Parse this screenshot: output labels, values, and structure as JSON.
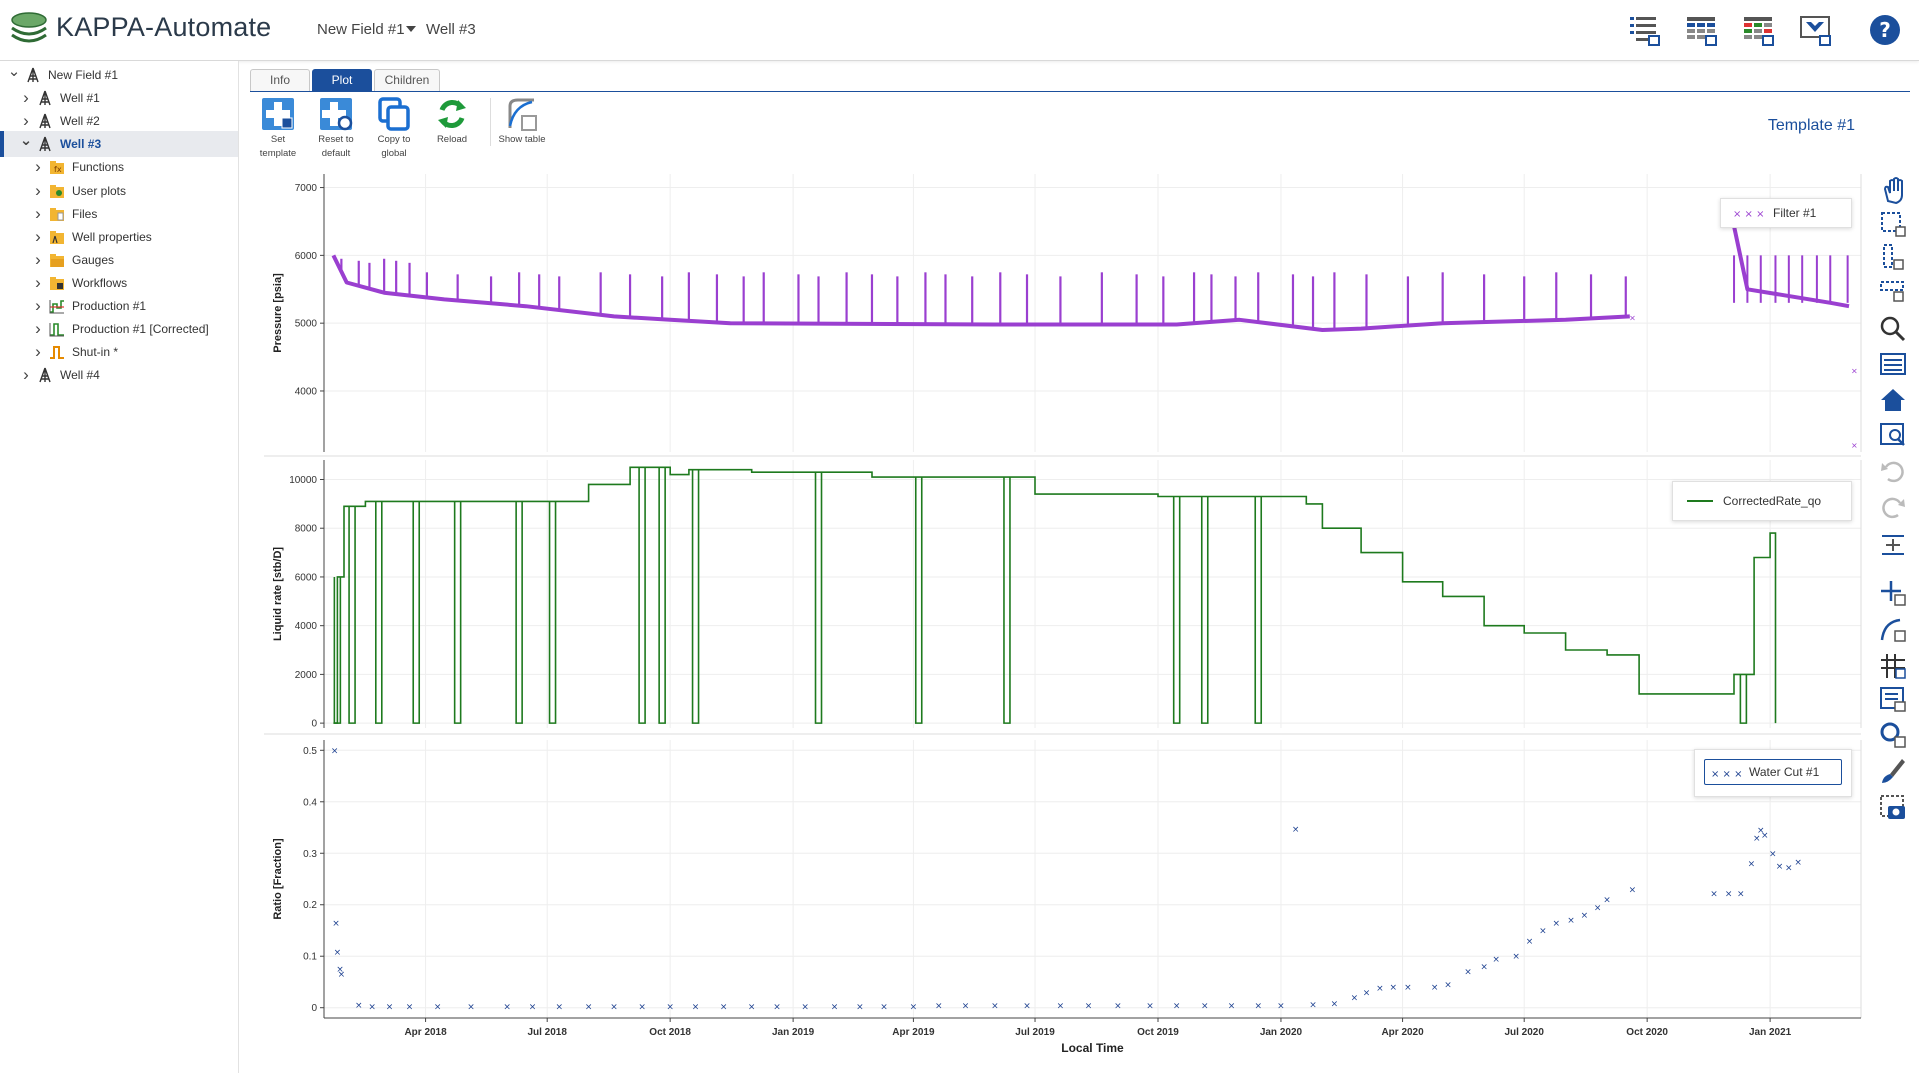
{
  "app": {
    "title": "KAPPA-Automate",
    "breadcrumb_field": "New Field #1",
    "breadcrumb_well": "Well #3"
  },
  "header_icons": [
    "list-view-icon",
    "grid-view-icon",
    "table-view-icon",
    "dashboard-icon",
    "help-icon"
  ],
  "tree": [
    {
      "label": "New Field #1",
      "level": 0,
      "expanded": true,
      "icon": "rig-icon"
    },
    {
      "label": "Well #1",
      "level": 1,
      "expanded": false,
      "icon": "rig-icon"
    },
    {
      "label": "Well #2",
      "level": 1,
      "expanded": false,
      "icon": "rig-icon"
    },
    {
      "label": "Well #3",
      "level": 1,
      "expanded": true,
      "icon": "rig-icon",
      "selected": true
    },
    {
      "label": "Functions",
      "level": 2,
      "expanded": false,
      "icon": "functions-folder-icon"
    },
    {
      "label": "User plots",
      "level": 2,
      "expanded": false,
      "icon": "user-plots-folder-icon"
    },
    {
      "label": "Files",
      "level": 2,
      "expanded": false,
      "icon": "files-folder-icon"
    },
    {
      "label": "Well properties",
      "level": 2,
      "expanded": false,
      "icon": "well-properties-folder-icon"
    },
    {
      "label": "Gauges",
      "level": 2,
      "expanded": false,
      "icon": "gauges-folder-icon"
    },
    {
      "label": "Workflows",
      "level": 2,
      "expanded": false,
      "icon": "workflows-folder-icon"
    },
    {
      "label": "Production #1",
      "level": 2,
      "expanded": false,
      "icon": "production-icon"
    },
    {
      "label": "Production #1 [Corrected]",
      "level": 2,
      "expanded": false,
      "icon": "production-corrected-icon"
    },
    {
      "label": "Shut-in *",
      "level": 2,
      "expanded": false,
      "icon": "shut-in-icon"
    },
    {
      "label": "Well #4",
      "level": 1,
      "expanded": false,
      "icon": "rig-icon"
    }
  ],
  "tabs": [
    {
      "label": "Info",
      "active": false
    },
    {
      "label": "Plot",
      "active": true
    },
    {
      "label": "Children",
      "active": false
    }
  ],
  "toolbar": [
    {
      "name": "set-template-button",
      "line1": "Set",
      "line2": "template",
      "icon": "set-template-icon"
    },
    {
      "name": "reset-to-default-button",
      "line1": "Reset to",
      "line2": "default",
      "icon": "reset-default-icon"
    },
    {
      "name": "copy-to-global-button",
      "line1": "Copy to",
      "line2": "global",
      "icon": "copy-icon"
    },
    {
      "name": "reload-button",
      "line1": "Reload",
      "line2": "",
      "icon": "reload-icon"
    },
    {
      "name": "show-table-button",
      "line1": "Show table",
      "line2": "",
      "icon": "show-table-icon"
    }
  ],
  "template_label": "Template #1",
  "right_tools": [
    "pan-icon",
    "zoom-box-icon",
    "zoom-y-icon",
    "zoom-x-icon",
    "zoom-icon",
    "select-icon",
    "home-icon",
    "zoom-fit-icon",
    "undo-icon",
    "redo-icon",
    "align-icon",
    "add-point-icon",
    "curve-icon",
    "grid-icon",
    "legend-icon",
    "marker-icon",
    "brush-icon",
    "snapshot-icon"
  ],
  "colors": {
    "accent": "#1b4f9c",
    "pressure": "#9a3fd0",
    "rate": "#1e7a1e",
    "ratio": "#1b3f8f"
  },
  "chart_data": {
    "type": "line",
    "xlabel": "Local Time",
    "x_ticks": [
      "Apr 2018",
      "Jul 2018",
      "Oct 2018",
      "Jan 2019",
      "Apr 2019",
      "Jul 2019",
      "Oct 2019",
      "Jan 2020",
      "Apr 2020",
      "Jul 2020",
      "Oct 2020",
      "Jan 2021"
    ],
    "x_range": [
      "2018-01-15",
      "2021-03-10"
    ],
    "panels": [
      {
        "id": "pressure",
        "ylabel": "Pressure [psia]",
        "ylim": [
          3100,
          7200
        ],
        "y_ticks": [
          4000,
          5000,
          6000,
          7000
        ],
        "series": [
          {
            "name": "Filter #1",
            "baseline": [
              [
                "2018-01-22",
                6000
              ],
              [
                "2018-02-01",
                5600
              ],
              [
                "2018-03-01",
                5450
              ],
              [
                "2018-04-15",
                5350
              ],
              [
                "2018-06-15",
                5250
              ],
              [
                "2018-08-20",
                5100
              ],
              [
                "2018-10-01",
                5050
              ],
              [
                "2018-11-15",
                5000
              ],
              [
                "2019-06-01",
                4980
              ],
              [
                "2019-10-15",
                4980
              ],
              [
                "2019-12-01",
                5050
              ],
              [
                "2020-02-01",
                4900
              ],
              [
                "2020-03-01",
                4920
              ],
              [
                "2020-05-01",
                5000
              ],
              [
                "2020-08-01",
                5050
              ],
              [
                "2020-09-18",
                5100
              ],
              [
                "2020-12-01",
                6800
              ],
              [
                "2020-12-15",
                5500
              ],
              [
                "2021-02-15",
                5300
              ],
              [
                "2021-03-01",
                5250
              ]
            ],
            "spike_dates": [
              "2018-01-28",
              "2018-02-10",
              "2018-02-18",
              "2018-03-01",
              "2018-03-10",
              "2018-03-20",
              "2018-04-02",
              "2018-04-25",
              "2018-05-20",
              "2018-06-10",
              "2018-06-25",
              "2018-07-10",
              "2018-08-10",
              "2018-09-01",
              "2018-09-25",
              "2018-10-15",
              "2018-11-05",
              "2018-11-25",
              "2018-12-10",
              "2019-01-05",
              "2019-01-20",
              "2019-02-10",
              "2019-03-01",
              "2019-03-20",
              "2019-04-10",
              "2019-04-25",
              "2019-05-15",
              "2019-06-05",
              "2019-06-25",
              "2019-07-20",
              "2019-08-20",
              "2019-09-15",
              "2019-10-05",
              "2019-10-28",
              "2019-11-10",
              "2019-11-28",
              "2019-12-15",
              "2020-01-10",
              "2020-01-25",
              "2020-02-10",
              "2020-03-05",
              "2020-04-05",
              "2020-05-01",
              "2020-06-01",
              "2020-07-01",
              "2020-07-25",
              "2020-08-20",
              "2020-09-15"
            ],
            "spike_peak": 5750,
            "outliers": [
              [
                "2020-09-20",
                5080
              ],
              [
                "2021-03-05",
                4300
              ],
              [
                "2021-03-05",
                3200
              ]
            ]
          }
        ]
      },
      {
        "id": "rate",
        "ylabel": "Liquid rate [stb/D]",
        "ylim": [
          -200,
          10800
        ],
        "y_ticks": [
          0,
          2000,
          4000,
          6000,
          8000,
          10000
        ],
        "series": [
          {
            "name": "CorrectedRate_qo",
            "steps": [
              [
                "2018-01-22",
                0
              ],
              [
                "2018-01-25",
                6000
              ],
              [
                "2018-01-30",
                8900
              ],
              [
                "2018-02-15",
                9100
              ],
              [
                "2018-05-01",
                9100
              ],
              [
                "2018-06-15",
                9100
              ],
              [
                "2018-07-25",
                9100
              ],
              [
                "2018-08-01",
                9800
              ],
              [
                "2018-09-01",
                10500
              ],
              [
                "2018-10-01",
                10200
              ],
              [
                "2018-10-15",
                10400
              ],
              [
                "2018-12-01",
                10300
              ],
              [
                "2019-03-01",
                10100
              ],
              [
                "2019-07-01",
                9400
              ],
              [
                "2019-10-01",
                9300
              ],
              [
                "2019-12-01",
                9300
              ],
              [
                "2020-01-01",
                9300
              ],
              [
                "2020-01-20",
                9000
              ],
              [
                "2020-02-01",
                8000
              ],
              [
                "2020-03-01",
                7000
              ],
              [
                "2020-04-01",
                5800
              ],
              [
                "2020-05-01",
                5200
              ],
              [
                "2020-06-01",
                4000
              ],
              [
                "2020-07-01",
                3700
              ],
              [
                "2020-08-01",
                3000
              ],
              [
                "2020-09-01",
                2800
              ],
              [
                "2020-09-25",
                1200
              ],
              [
                "2020-11-20",
                1200
              ],
              [
                "2020-12-05",
                2000
              ],
              [
                "2020-12-20",
                6800
              ],
              [
                "2021-01-01",
                7800
              ],
              [
                "2021-01-05",
                0
              ]
            ],
            "dropout_dates": [
              "2018-01-25",
              "2018-02-05",
              "2018-02-25",
              "2018-03-25",
              "2018-04-25",
              "2018-06-10",
              "2018-07-05",
              "2018-09-10",
              "2018-09-25",
              "2018-10-20",
              "2019-01-20",
              "2019-04-05",
              "2019-06-10",
              "2019-10-15",
              "2019-11-05",
              "2019-12-15",
              "2020-12-12"
            ]
          }
        ]
      },
      {
        "id": "ratio",
        "ylabel": "Ratio [Fraction]",
        "ylim": [
          -0.02,
          0.52
        ],
        "y_ticks": [
          0,
          0.1,
          0.2,
          0.3,
          0.4,
          0.5
        ],
        "y_tick_labels": [
          "0",
          "0.1",
          "0.2",
          "0.3",
          "0.4",
          "0.5"
        ],
        "series": [
          {
            "name": "Water Cut #1",
            "points": [
              [
                "2018-01-23",
                0.5
              ],
              [
                "2018-01-24",
                0.165
              ],
              [
                "2018-01-25",
                0.108
              ],
              [
                "2018-01-27",
                0.075
              ],
              [
                "2018-01-28",
                0.065
              ],
              [
                "2018-02-10",
                0.005
              ],
              [
                "2018-02-20",
                0.002
              ],
              [
                "2018-03-05",
                0.002
              ],
              [
                "2018-03-20",
                0.002
              ],
              [
                "2018-04-10",
                0.002
              ],
              [
                "2018-05-05",
                0.002
              ],
              [
                "2018-06-01",
                0.002
              ],
              [
                "2018-06-20",
                0.002
              ],
              [
                "2018-07-10",
                0.002
              ],
              [
                "2018-08-01",
                0.002
              ],
              [
                "2018-08-20",
                0.002
              ],
              [
                "2018-09-10",
                0.002
              ],
              [
                "2018-10-01",
                0.002
              ],
              [
                "2018-10-20",
                0.002
              ],
              [
                "2018-11-10",
                0.002
              ],
              [
                "2018-12-01",
                0.002
              ],
              [
                "2018-12-20",
                0.002
              ],
              [
                "2019-01-10",
                0.002
              ],
              [
                "2019-02-01",
                0.002
              ],
              [
                "2019-02-20",
                0.002
              ],
              [
                "2019-03-10",
                0.002
              ],
              [
                "2019-04-01",
                0.002
              ],
              [
                "2019-04-20",
                0.004
              ],
              [
                "2019-05-10",
                0.004
              ],
              [
                "2019-06-01",
                0.004
              ],
              [
                "2019-06-25",
                0.004
              ],
              [
                "2019-07-20",
                0.004
              ],
              [
                "2019-08-10",
                0.004
              ],
              [
                "2019-09-01",
                0.004
              ],
              [
                "2019-09-25",
                0.004
              ],
              [
                "2019-10-15",
                0.004
              ],
              [
                "2019-11-05",
                0.004
              ],
              [
                "2019-11-25",
                0.004
              ],
              [
                "2019-12-15",
                0.004
              ],
              [
                "2020-01-01",
                0.004
              ],
              [
                "2020-01-12",
                0.347
              ],
              [
                "2020-01-25",
                0.006
              ],
              [
                "2020-02-10",
                0.008
              ],
              [
                "2020-02-25",
                0.02
              ],
              [
                "2020-03-05",
                0.03
              ],
              [
                "2020-03-15",
                0.038
              ],
              [
                "2020-03-25",
                0.04
              ],
              [
                "2020-04-05",
                0.04
              ],
              [
                "2020-04-25",
                0.04
              ],
              [
                "2020-05-05",
                0.045
              ],
              [
                "2020-05-20",
                0.07
              ],
              [
                "2020-06-01",
                0.08
              ],
              [
                "2020-06-10",
                0.095
              ],
              [
                "2020-06-25",
                0.1
              ],
              [
                "2020-07-05",
                0.13
              ],
              [
                "2020-07-15",
                0.15
              ],
              [
                "2020-07-25",
                0.165
              ],
              [
                "2020-08-05",
                0.17
              ],
              [
                "2020-08-15",
                0.18
              ],
              [
                "2020-08-25",
                0.195
              ],
              [
                "2020-09-01",
                0.21
              ],
              [
                "2020-09-20",
                0.23
              ],
              [
                "2020-11-20",
                0.222
              ],
              [
                "2020-12-01",
                0.222
              ],
              [
                "2020-12-10",
                0.222
              ],
              [
                "2020-12-18",
                0.28
              ],
              [
                "2020-12-22",
                0.33
              ],
              [
                "2020-12-25",
                0.345
              ],
              [
                "2020-12-28",
                0.335
              ],
              [
                "2021-01-03",
                0.3
              ],
              [
                "2021-01-08",
                0.275
              ],
              [
                "2021-01-15",
                0.272
              ],
              [
                "2021-01-22",
                0.283
              ]
            ]
          }
        ]
      }
    ]
  }
}
